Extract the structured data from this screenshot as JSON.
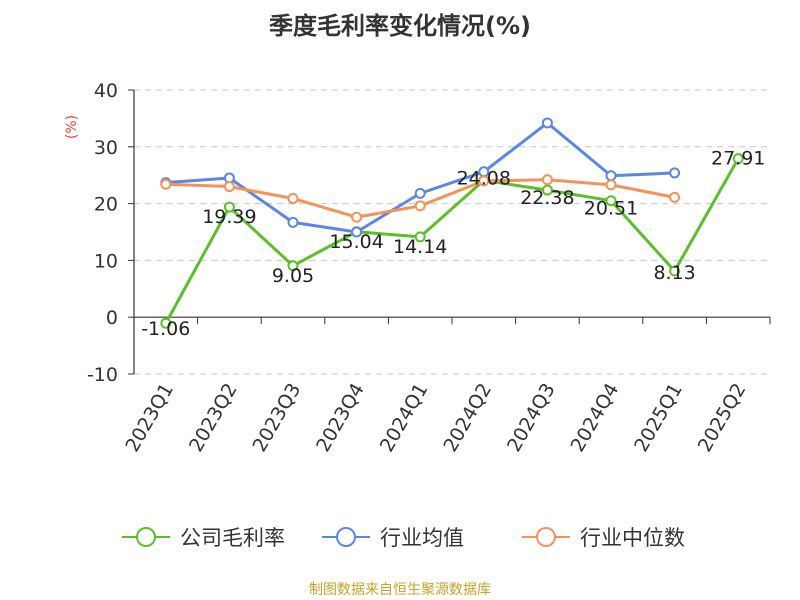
{
  "chart_data": {
    "type": "line",
    "title": "季度毛利率变化情况(%)",
    "ylabel": "(%)",
    "xlabel": "",
    "ylim": [
      -10,
      40
    ],
    "yticks": [
      -10,
      0,
      10,
      20,
      30,
      40
    ],
    "grid": true,
    "legend_position": "bottom",
    "categories": [
      "2023Q1",
      "2023Q2",
      "2023Q3",
      "2023Q4",
      "2024Q1",
      "2024Q2",
      "2024Q3",
      "2024Q4",
      "2025Q1",
      "2025Q2"
    ],
    "series": [
      {
        "name": "公司毛利率",
        "color": "#5bbf2b",
        "values": [
          -1.06,
          19.39,
          9.05,
          15.04,
          14.14,
          24.08,
          22.38,
          20.51,
          8.13,
          27.91
        ],
        "labels": [
          "-1.06",
          "19.39",
          "9.05",
          "15.04",
          "14.14",
          "24.08",
          "22.38",
          "20.51",
          "8.13",
          "27.91"
        ]
      },
      {
        "name": "行业均值",
        "color": "#5b86e5",
        "values": [
          23.7,
          24.5,
          16.7,
          15.0,
          21.8,
          25.6,
          34.2,
          24.9,
          25.4,
          null
        ]
      },
      {
        "name": "行业中位数",
        "color": "#f4925a",
        "values": [
          23.4,
          23.0,
          20.9,
          17.6,
          19.6,
          24.0,
          24.2,
          23.3,
          21.1,
          null
        ]
      }
    ]
  },
  "footer": {
    "source": "制图数据来自恒生聚源数据库"
  }
}
